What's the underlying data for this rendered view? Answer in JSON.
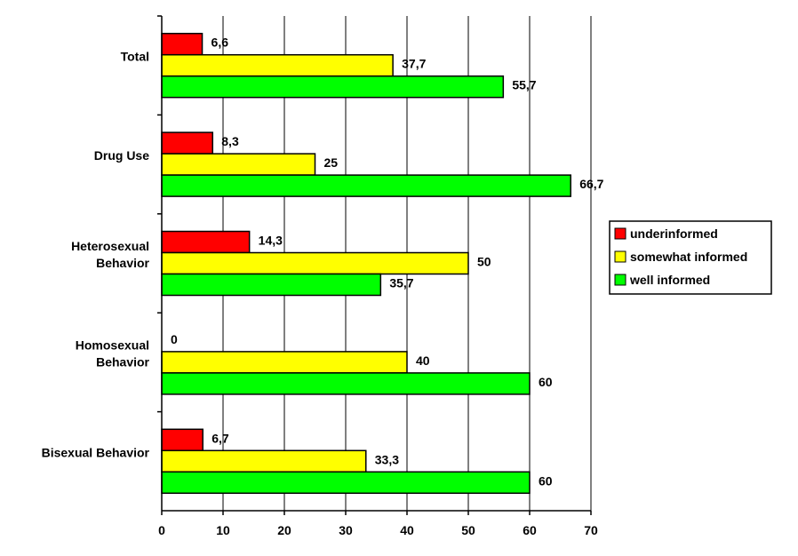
{
  "chart_data": {
    "type": "bar",
    "orientation": "horizontal",
    "title": "",
    "xlabel": "",
    "ylabel": "",
    "categories": [
      "Total",
      "Drug Use",
      "Heterosexual Behavior",
      "Homosexual Behavior",
      "Bisexual Behavior"
    ],
    "category_label_lines": [
      [
        "Total"
      ],
      [
        "Drug Use"
      ],
      [
        "Heterosexual",
        "Behavior"
      ],
      [
        "Homosexual",
        "Behavior"
      ],
      [
        "Bisexual Behavior"
      ]
    ],
    "series": [
      {
        "name": "underinformed",
        "color": "#ff0000",
        "values": [
          6.6,
          8.3,
          14.3,
          0,
          6.7
        ],
        "labels": [
          "6,6",
          "8,3",
          "14,3",
          "0",
          "6,7"
        ]
      },
      {
        "name": "somewhat informed",
        "color": "#ffff00",
        "values": [
          37.7,
          25,
          50,
          40,
          33.3
        ],
        "labels": [
          "37,7",
          "25",
          "50",
          "40",
          "33,3"
        ]
      },
      {
        "name": "well informed",
        "color": "#00ff00",
        "values": [
          55.7,
          66.7,
          35.7,
          60,
          60
        ],
        "labels": [
          "55,7",
          "66,7",
          "35,7",
          "60",
          "60"
        ]
      }
    ],
    "xlim": [
      0,
      70
    ],
    "xticks": [
      0,
      10,
      20,
      30,
      40,
      50,
      60,
      70
    ],
    "grid": "vertical",
    "legend_position": "right"
  }
}
